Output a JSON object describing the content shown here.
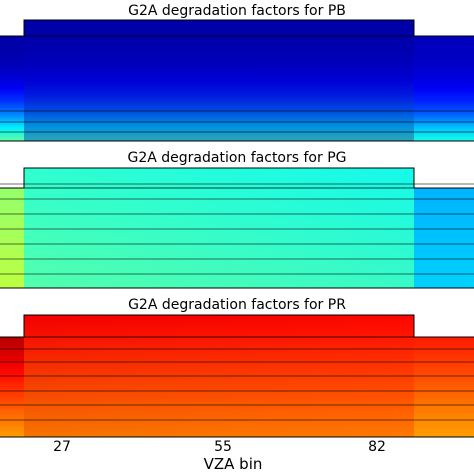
{
  "figure": {
    "xlabel": "VZA bin"
  },
  "chart_data": [
    {
      "type": "heatmap",
      "title": "G2A degradation factors for PB",
      "colormap": "jet",
      "xlabel": "VZA bin",
      "x_ticks": [
        27,
        55,
        82
      ],
      "panel": "PB",
      "profile": {
        "top": [
          0.04,
          0.04,
          0.04,
          0.06
        ],
        "bottom": [
          0.5,
          0.48,
          0.44,
          0.4
        ],
        "peak": [
          0.34,
          0.36,
          0.38,
          0.42
        ]
      }
    },
    {
      "type": "heatmap",
      "title": "G2A degradation factors for PG",
      "colormap": "jet",
      "xlabel": "VZA bin",
      "x_ticks": [
        27,
        55,
        82
      ],
      "panel": "PG",
      "profile": {
        "top": [
          0.52,
          0.45,
          0.36,
          0.3
        ],
        "bottom": [
          0.56,
          0.5,
          0.42,
          0.33
        ]
      }
    },
    {
      "type": "heatmap",
      "title": "G2A degradation factors for PR",
      "colormap": "jet",
      "xlabel": "VZA bin",
      "x_ticks": [
        27,
        55,
        82
      ],
      "panel": "PR",
      "profile": {
        "top": [
          0.95,
          0.9,
          0.86,
          0.85
        ],
        "bottom": [
          0.72,
          0.7,
          0.7,
          0.72
        ]
      }
    }
  ]
}
